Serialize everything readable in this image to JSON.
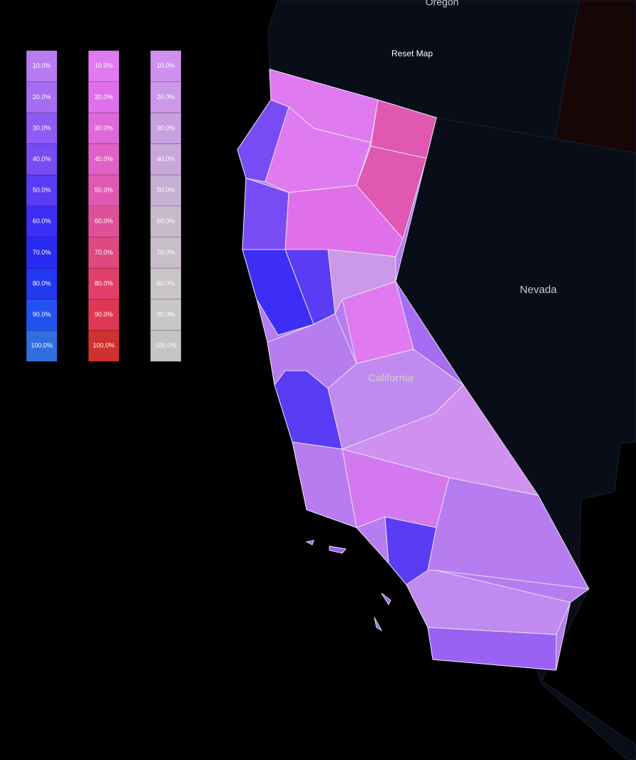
{
  "reset_button": "Reset Map",
  "labels": {
    "oregon": "Oregon",
    "nevada": "Nevada",
    "california": "California"
  },
  "legends": [
    {
      "cells": [
        {
          "label": "10.0%",
          "color": "#b77cf0"
        },
        {
          "label": "20.0%",
          "color": "#a66cf2"
        },
        {
          "label": "30.0%",
          "color": "#8f5af4"
        },
        {
          "label": "40.0%",
          "color": "#784cf4"
        },
        {
          "label": "50.0%",
          "color": "#5a3cf4"
        },
        {
          "label": "60.0%",
          "color": "#3c2ef4"
        },
        {
          "label": "70.0%",
          "color": "#2a2af0"
        },
        {
          "label": "80.0%",
          "color": "#2438f0"
        },
        {
          "label": "90.0%",
          "color": "#2252f0"
        },
        {
          "label": "100.0%",
          "color": "#306ee0"
        }
      ]
    },
    {
      "cells": [
        {
          "label": "10.0%",
          "color": "#e07af0"
        },
        {
          "label": "20.0%",
          "color": "#e070ea"
        },
        {
          "label": "30.0%",
          "color": "#e068da"
        },
        {
          "label": "40.0%",
          "color": "#e060c6"
        },
        {
          "label": "50.0%",
          "color": "#e058b2"
        },
        {
          "label": "60.0%",
          "color": "#e0509a"
        },
        {
          "label": "70.0%",
          "color": "#e04882"
        },
        {
          "label": "80.0%",
          "color": "#e0406a"
        },
        {
          "label": "90.0%",
          "color": "#e03852"
        },
        {
          "label": "100.0%",
          "color": "#d03030"
        }
      ]
    },
    {
      "cells": [
        {
          "label": "10.0%",
          "color": "#d090f0"
        },
        {
          "label": "20.0%",
          "color": "#cc98e8"
        },
        {
          "label": "30.0%",
          "color": "#c8a0e0"
        },
        {
          "label": "40.0%",
          "color": "#c8a8da"
        },
        {
          "label": "50.0%",
          "color": "#c8b0d2"
        },
        {
          "label": "60.0%",
          "color": "#c8b8cc"
        },
        {
          "label": "70.0%",
          "color": "#c8beca"
        },
        {
          "label": "80.0%",
          "color": "#c8c4c8"
        },
        {
          "label": "90.0%",
          "color": "#c8c6c8"
        },
        {
          "label": "100.0%",
          "color": "#c4c4c4"
        }
      ]
    }
  ]
}
